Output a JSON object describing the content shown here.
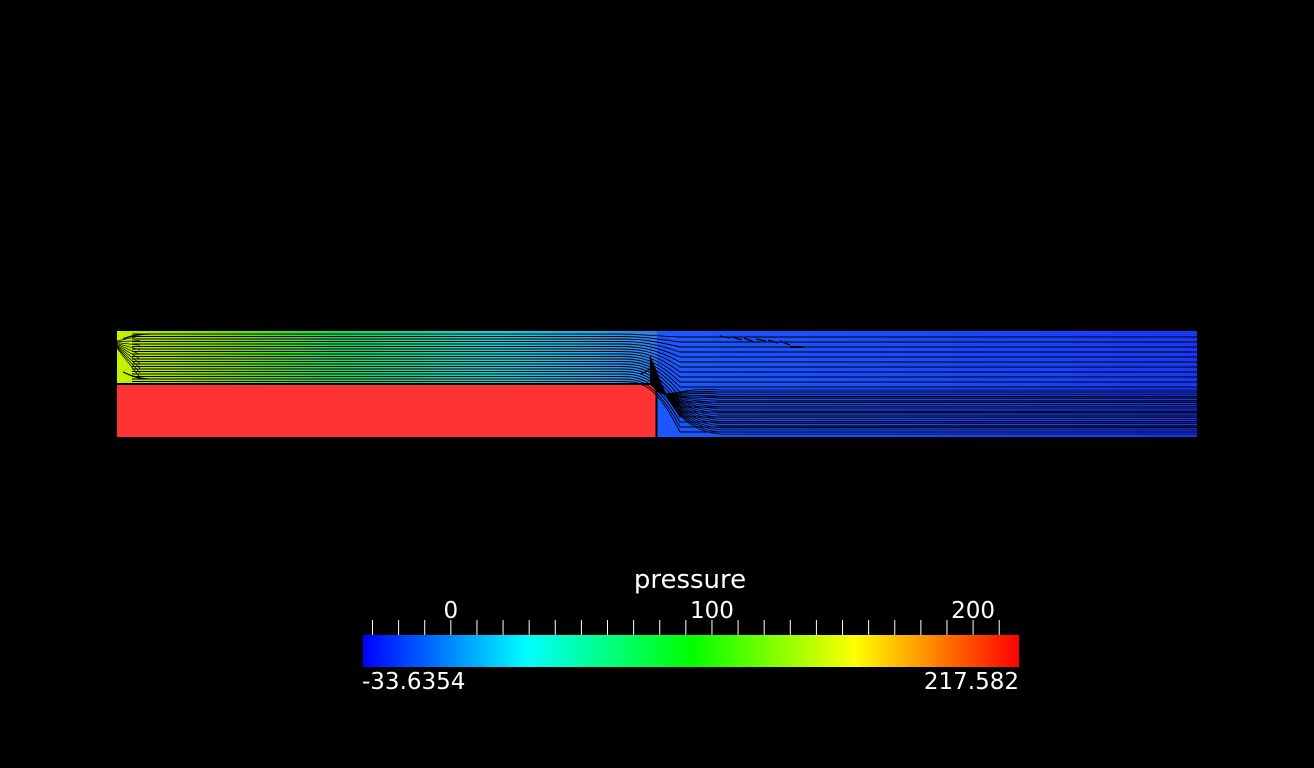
{
  "legend": {
    "title": "pressure",
    "min_label": "-33.6354",
    "max_label": "217.582",
    "range": [
      -33.6354,
      217.582
    ],
    "tick_labels": [
      {
        "value": 0,
        "text": "0"
      },
      {
        "value": 100,
        "text": "100"
      },
      {
        "value": 200,
        "text": "200"
      }
    ],
    "minor_tick_step": 10,
    "colormap": [
      "#0000ff",
      "#00ffff",
      "#00ff00",
      "#ffff00",
      "#ff0000"
    ]
  },
  "field": {
    "solid_block_color": "#ff3333",
    "inlet_pressure_color": "#b0ee00",
    "mid_pressure_color": "#22cccc",
    "outlet_pressure_color": "#1840ff",
    "background_color": "#000000"
  }
}
